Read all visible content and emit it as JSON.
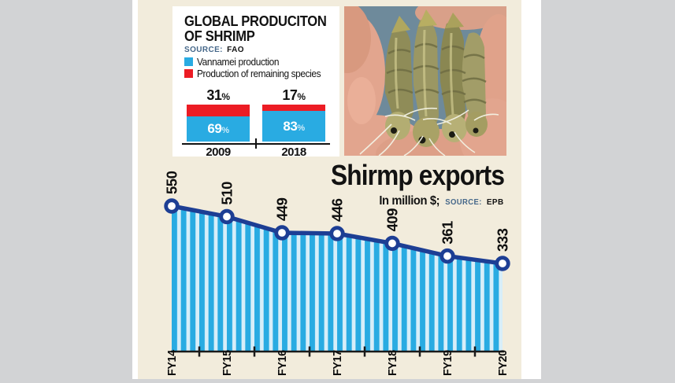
{
  "page": {
    "background_color": "#d2d3d5",
    "paper_color": "#f2ecdc",
    "paper_edge_color": "#ffffff"
  },
  "production_panel": {
    "title_line1": "GLOBAL PRODUCITON",
    "title_line2": "OF SHRIMP",
    "source_label": "SOURCE:",
    "source_value": "FAO",
    "legend": [
      {
        "label": "Vannamei production",
        "color": "#29abe2"
      },
      {
        "label": "Production of remaining species",
        "color": "#ec1c24"
      }
    ]
  },
  "photo": {
    "description": "close-up photo of raw shrimps held in two hands"
  },
  "exports": {
    "title": "Shirmp exports",
    "unit_text": "In million $;",
    "source_label": "SOURCE:",
    "source_value": "EPB"
  },
  "chart_data": [
    {
      "id": "global-shrimp-production",
      "type": "bar",
      "stacked": true,
      "title": "GLOBAL PRODUCITON OF SHRIMP",
      "source": "FAO",
      "categories": [
        "2009",
        "2018"
      ],
      "series": [
        {
          "name": "Vannamei production",
          "values": [
            69,
            83
          ],
          "color": "#29abe2"
        },
        {
          "name": "Production of remaining species",
          "values": [
            31,
            17
          ],
          "color": "#ec1c24"
        }
      ],
      "value_suffix": "%",
      "ylim": [
        0,
        100
      ],
      "grid": false,
      "legend_position": "top-left"
    },
    {
      "id": "shrimp-exports",
      "type": "area",
      "title": "Shirmp exports",
      "ylabel": "In million $",
      "source": "EPB",
      "categories": [
        "FY14",
        "FY15",
        "FY16",
        "FY17",
        "FY18",
        "FY19",
        "FY20"
      ],
      "values": [
        550,
        510,
        449,
        446,
        409,
        361,
        333
      ],
      "grid": false,
      "colors": {
        "line": "#1d3e94",
        "marker_fill": "#ffffff",
        "stripe_dark": "#29abe2",
        "stripe_light": "#d7eef9",
        "axis": "#1a1a1a"
      }
    }
  ]
}
